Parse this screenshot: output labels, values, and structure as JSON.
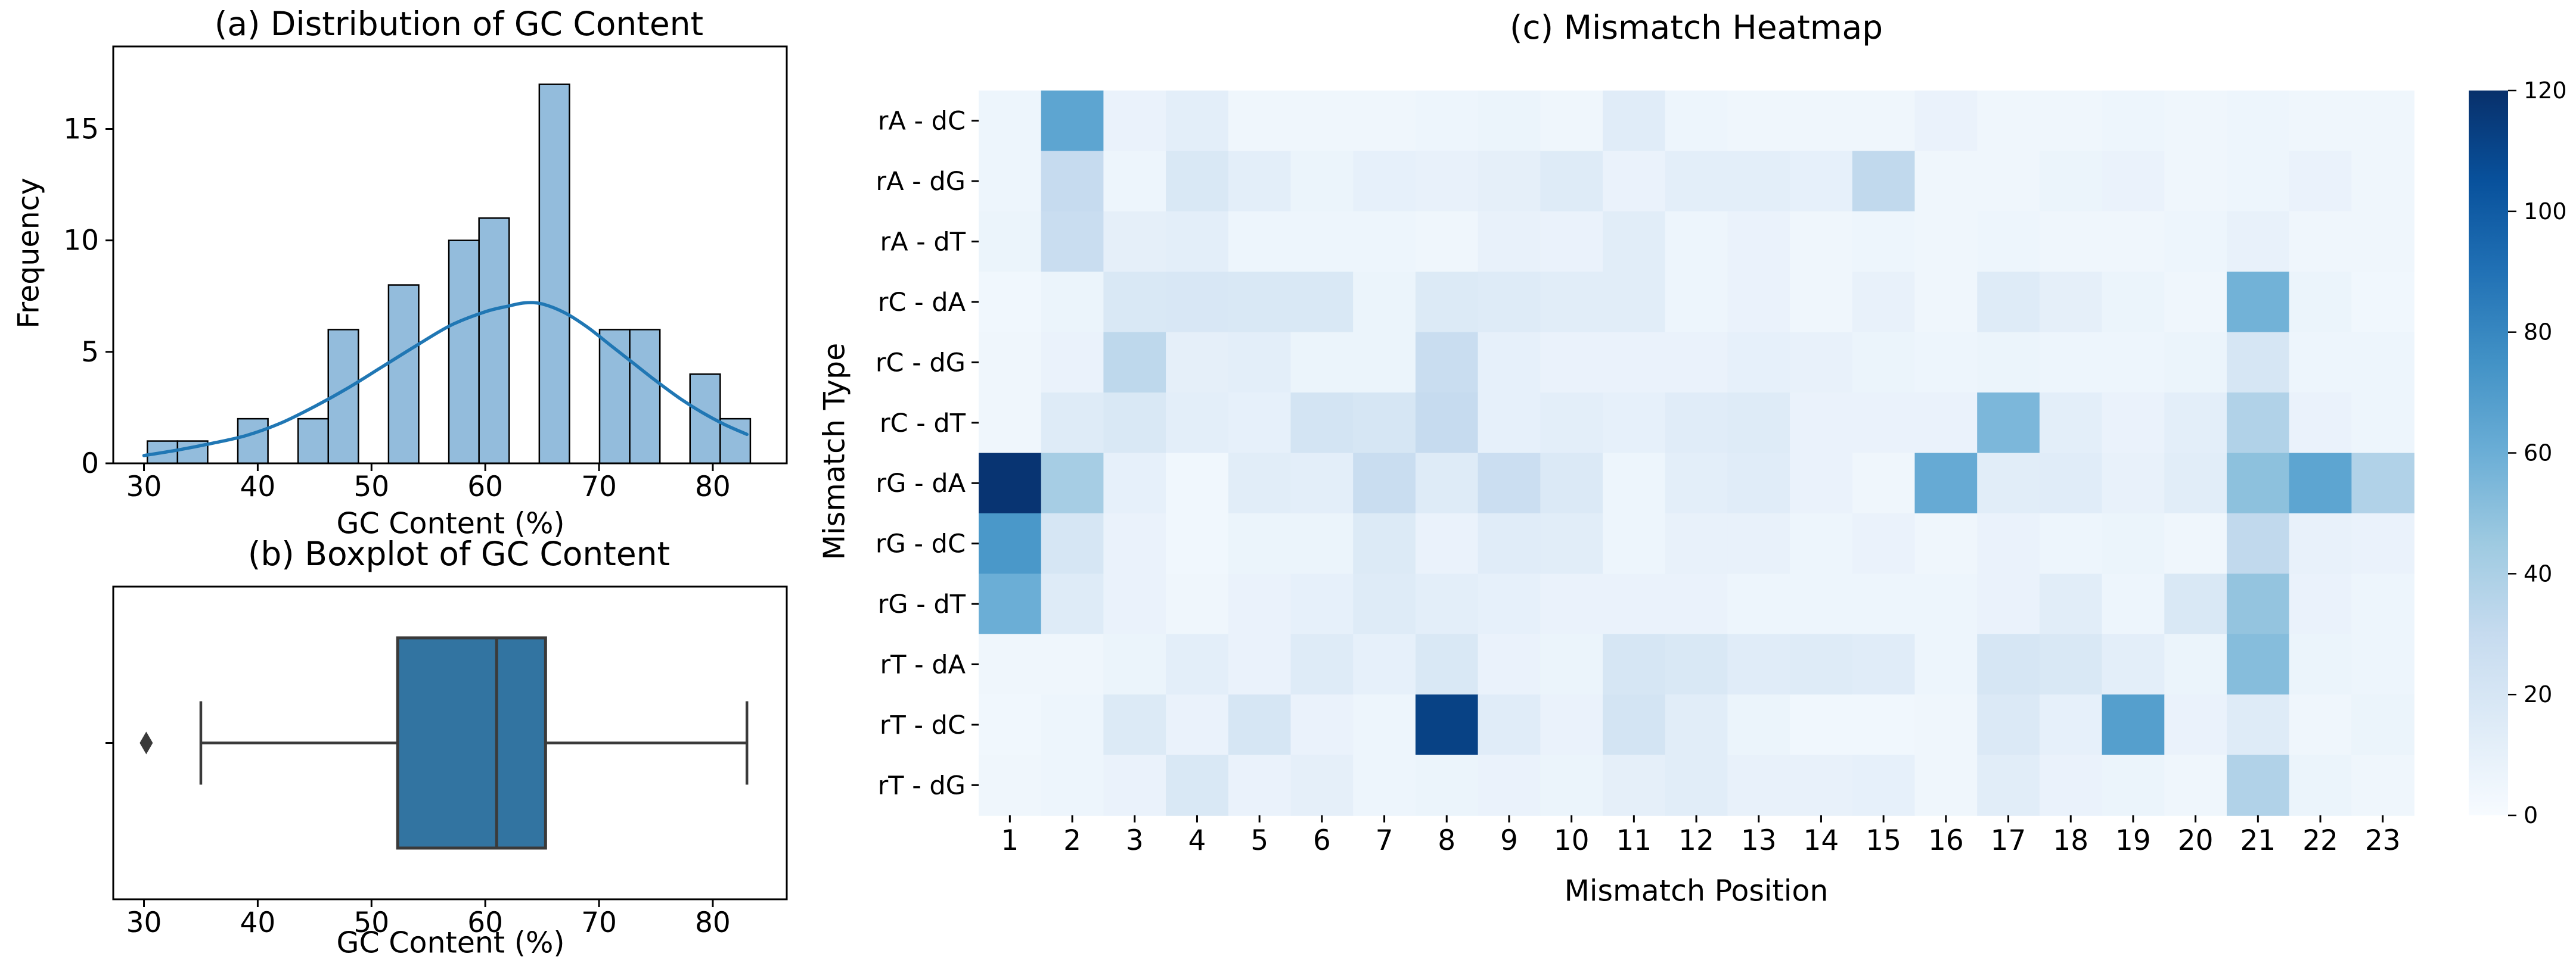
{
  "figure_background": "#ffffff",
  "chart_data": [
    {
      "id": "gc-histogram",
      "type": "bar",
      "title": "(a) Distribution of GC Content",
      "xlabel": "GC Content (%)",
      "ylabel": "Frequency",
      "xticks": [
        30,
        40,
        50,
        60,
        70,
        80
      ],
      "yticks": [
        0,
        5,
        10,
        15
      ],
      "xlim": [
        27.3,
        86.5
      ],
      "ylim": [
        0,
        18.7
      ],
      "grid": false,
      "bar_fill_color": "#93bcdc",
      "bar_edge_color": "#000000",
      "kde_line_color": "#2077b4",
      "bins": [
        {
          "x0": 30.3,
          "x1": 32.95,
          "count": 1
        },
        {
          "x0": 32.95,
          "x1": 35.6,
          "count": 1
        },
        {
          "x0": 35.6,
          "x1": 38.25,
          "count": 0
        },
        {
          "x0": 38.25,
          "x1": 40.9,
          "count": 2
        },
        {
          "x0": 40.9,
          "x1": 43.55,
          "count": 0
        },
        {
          "x0": 43.55,
          "x1": 46.2,
          "count": 2
        },
        {
          "x0": 46.2,
          "x1": 48.85,
          "count": 6
        },
        {
          "x0": 48.85,
          "x1": 51.5,
          "count": 0
        },
        {
          "x0": 51.5,
          "x1": 54.15,
          "count": 8
        },
        {
          "x0": 54.15,
          "x1": 56.8,
          "count": 0
        },
        {
          "x0": 56.8,
          "x1": 59.45,
          "count": 10
        },
        {
          "x0": 59.45,
          "x1": 62.1,
          "count": 11
        },
        {
          "x0": 62.1,
          "x1": 64.75,
          "count": 0
        },
        {
          "x0": 64.75,
          "x1": 67.4,
          "count": 17
        },
        {
          "x0": 67.4,
          "x1": 70.05,
          "count": 0
        },
        {
          "x0": 70.05,
          "x1": 72.7,
          "count": 6
        },
        {
          "x0": 72.7,
          "x1": 75.35,
          "count": 6
        },
        {
          "x0": 75.35,
          "x1": 78.0,
          "count": 0
        },
        {
          "x0": 78.0,
          "x1": 80.65,
          "count": 4
        },
        {
          "x0": 80.65,
          "x1": 83.3,
          "count": 2
        }
      ],
      "kde_points": [
        [
          30,
          0.35
        ],
        [
          33,
          0.6
        ],
        [
          36,
          0.9
        ],
        [
          39,
          1.25
        ],
        [
          42,
          1.8
        ],
        [
          45,
          2.55
        ],
        [
          48,
          3.4
        ],
        [
          51,
          4.35
        ],
        [
          54,
          5.3
        ],
        [
          57,
          6.2
        ],
        [
          60,
          6.8
        ],
        [
          62,
          7.05
        ],
        [
          63.5,
          7.2
        ],
        [
          65,
          7.15
        ],
        [
          67,
          6.75
        ],
        [
          69,
          6.1
        ],
        [
          71,
          5.3
        ],
        [
          73,
          4.5
        ],
        [
          75,
          3.7
        ],
        [
          77,
          2.95
        ],
        [
          79,
          2.3
        ],
        [
          81,
          1.75
        ],
        [
          83,
          1.3
        ]
      ]
    },
    {
      "id": "gc-boxplot",
      "type": "box",
      "title": "(b) Boxplot of GC Content",
      "xlabel": "GC Content (%)",
      "xticks": [
        30,
        40,
        50,
        60,
        70,
        80
      ],
      "xlim": [
        27.3,
        86.5
      ],
      "box_fill_color": "#3274a1",
      "line_color": "#3a3a3a",
      "whisker_low": 35.0,
      "q1": 52.3,
      "median": 61.0,
      "q3": 65.3,
      "whisker_high": 83.0,
      "outliers": [
        30.2
      ]
    },
    {
      "id": "mismatch-heatmap",
      "type": "heatmap",
      "title": "(c) Mismatch Heatmap",
      "xlabel": "Mismatch Position",
      "ylabel": "Mismatch Type",
      "colormap": "Blues",
      "vmin": 0,
      "vmax": 120,
      "colorbar_ticks": [
        0,
        20,
        40,
        60,
        80,
        100,
        120
      ],
      "rows": [
        "rA - dC",
        "rA - dG",
        "rA - dT",
        "rC - dA",
        "rC - dG",
        "rC - dT",
        "rG - dA",
        "rG - dC",
        "rG - dT",
        "rT - dA",
        "rT - dC",
        "rT - dG"
      ],
      "columns": [
        1,
        2,
        3,
        4,
        5,
        6,
        7,
        8,
        9,
        10,
        11,
        12,
        13,
        14,
        15,
        16,
        17,
        18,
        19,
        20,
        21,
        22,
        23
      ],
      "values": [
        [
          6,
          65,
          8,
          12,
          5,
          5,
          5,
          6,
          7,
          5,
          14,
          6,
          5,
          5,
          5,
          8,
          5,
          5,
          6,
          5,
          6,
          5,
          5
        ],
        [
          6,
          30,
          6,
          18,
          12,
          7,
          10,
          9,
          11,
          15,
          8,
          12,
          12,
          10,
          32,
          5,
          5,
          7,
          8,
          5,
          6,
          8,
          5
        ],
        [
          7,
          28,
          11,
          12,
          6,
          6,
          6,
          5,
          9,
          8,
          13,
          6,
          8,
          5,
          6,
          5,
          6,
          5,
          5,
          6,
          9,
          5,
          5
        ],
        [
          4,
          7,
          18,
          19,
          18,
          18,
          7,
          16,
          15,
          13,
          13,
          6,
          8,
          5,
          9,
          5,
          15,
          11,
          7,
          5,
          58,
          7,
          4
        ],
        [
          5,
          8,
          33,
          11,
          12,
          7,
          7,
          28,
          10,
          8,
          8,
          8,
          10,
          9,
          7,
          6,
          7,
          6,
          6,
          7,
          20,
          6,
          6
        ],
        [
          5,
          15,
          18,
          12,
          10,
          22,
          20,
          30,
          10,
          12,
          10,
          14,
          15,
          8,
          8,
          8,
          55,
          12,
          8,
          12,
          38,
          8,
          6
        ],
        [
          118,
          42,
          10,
          4,
          13,
          12,
          28,
          15,
          27,
          17,
          6,
          12,
          14,
          8,
          5,
          62,
          13,
          14,
          9,
          13,
          50,
          65,
          38
        ],
        [
          72,
          20,
          8,
          4,
          7,
          7,
          16,
          8,
          14,
          13,
          6,
          9,
          9,
          6,
          8,
          5,
          8,
          6,
          7,
          5,
          32,
          9,
          8
        ],
        [
          60,
          15,
          8,
          5,
          8,
          10,
          15,
          12,
          10,
          8,
          8,
          8,
          6,
          6,
          6,
          6,
          8,
          13,
          6,
          18,
          48,
          8,
          6
        ],
        [
          5,
          5,
          7,
          12,
          8,
          15,
          10,
          18,
          8,
          7,
          20,
          18,
          14,
          15,
          14,
          6,
          20,
          18,
          12,
          7,
          52,
          7,
          6
        ],
        [
          4,
          6,
          16,
          8,
          20,
          8,
          6,
          112,
          14,
          8,
          22,
          13,
          7,
          4,
          4,
          5,
          17,
          10,
          68,
          8,
          15,
          5,
          7
        ],
        [
          5,
          6,
          8,
          18,
          8,
          11,
          6,
          7,
          8,
          7,
          11,
          13,
          9,
          9,
          10,
          5,
          13,
          8,
          7,
          5,
          38,
          7,
          5
        ]
      ]
    }
  ]
}
